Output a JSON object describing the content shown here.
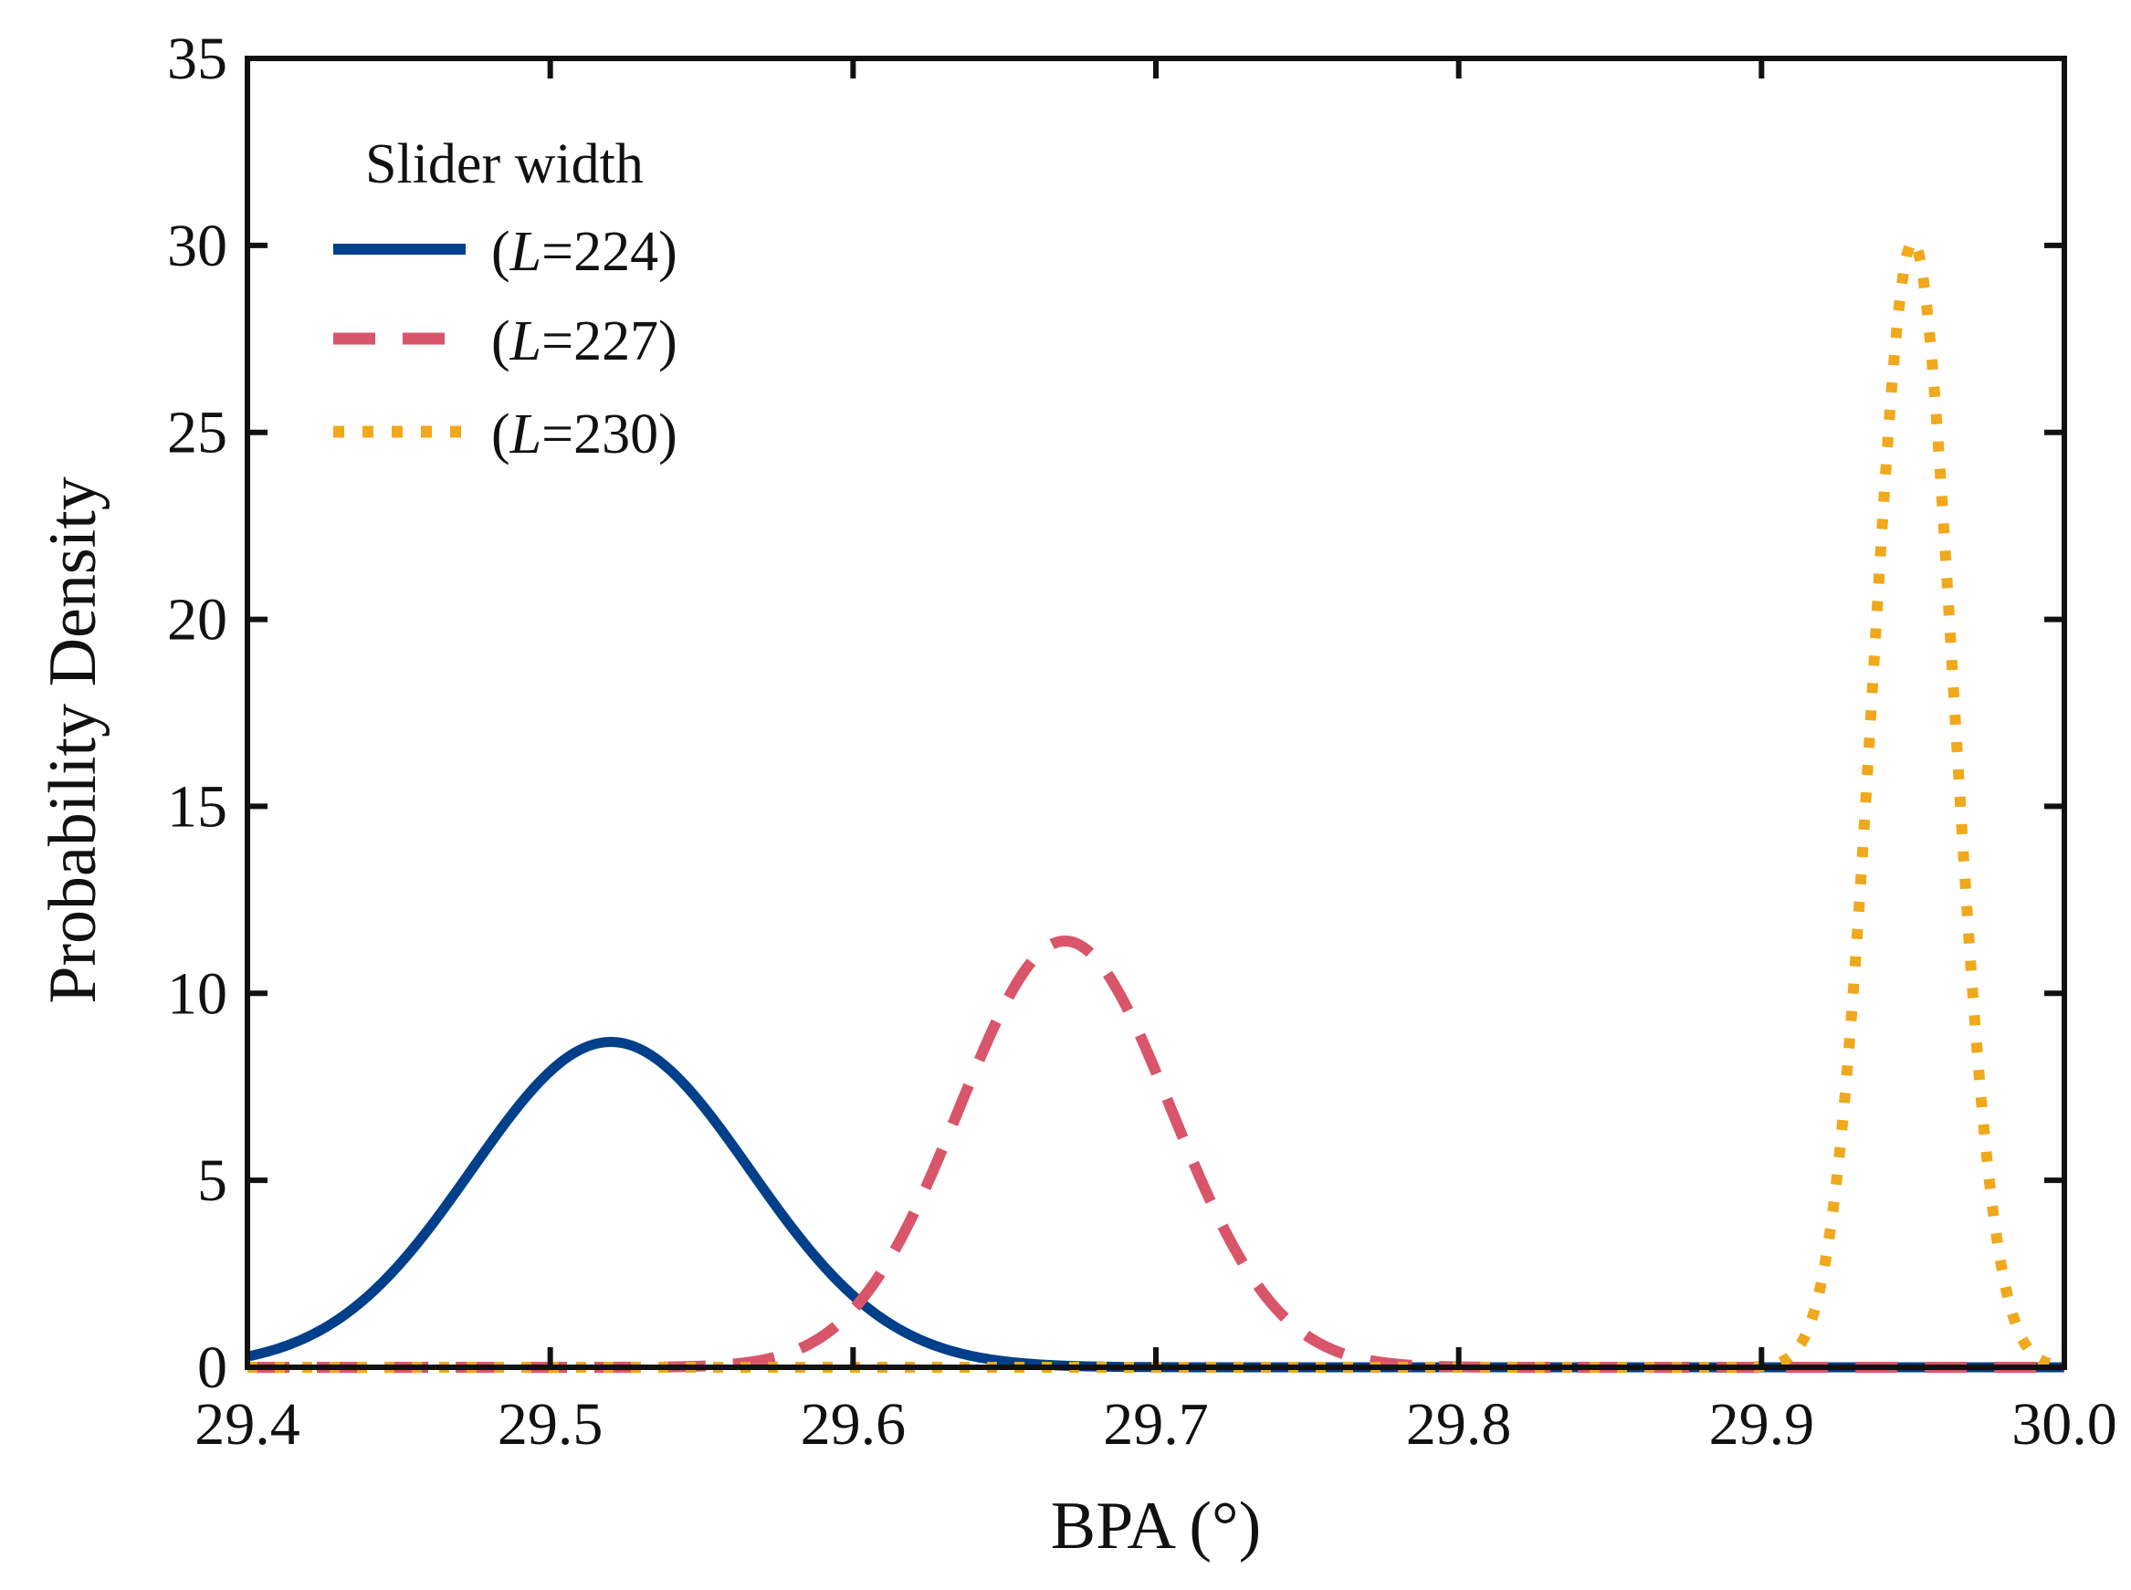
{
  "chart_data": {
    "type": "line",
    "title": "",
    "xlabel": "BPA (°)",
    "ylabel": "Probability Density",
    "xlim": [
      29.4,
      30.0
    ],
    "ylim": [
      0,
      35
    ],
    "xticks": [
      29.4,
      29.5,
      29.6,
      29.7,
      29.8,
      29.9,
      30.0
    ],
    "xtick_labels": [
      "29.4",
      "29.5",
      "29.6",
      "29.7",
      "29.8",
      "29.9",
      "30.0"
    ],
    "yticks": [
      0,
      5,
      10,
      15,
      20,
      25,
      30,
      35
    ],
    "ytick_labels": [
      "0",
      "5",
      "10",
      "15",
      "20",
      "25",
      "30",
      "35"
    ],
    "grid": false,
    "legend": {
      "title": "Slider width",
      "position": "top-left"
    },
    "series": [
      {
        "name": "(L=224)",
        "label_prefix": "(",
        "label_var": "L",
        "label_suffix": "=224)",
        "color": "#003f8a",
        "style": "solid",
        "distribution": "normal",
        "mean": 29.52,
        "peak": 8.7,
        "sigma": 0.046
      },
      {
        "name": "(L=227)",
        "label_prefix": "(",
        "label_var": "L",
        "label_suffix": "=227)",
        "color": "#d9556a",
        "style": "dashed",
        "distribution": "normal",
        "mean": 29.67,
        "peak": 11.4,
        "sigma": 0.035
      },
      {
        "name": "(L=230)",
        "label_prefix": "(",
        "label_var": "L",
        "label_suffix": "=230)",
        "color": "#f0a81c",
        "style": "dotted",
        "distribution": "normal",
        "mean": 29.95,
        "peak": 30.1,
        "sigma": 0.0133
      }
    ]
  }
}
